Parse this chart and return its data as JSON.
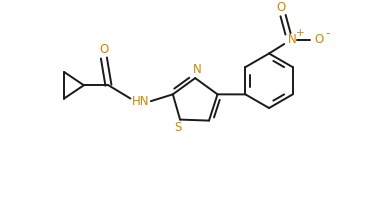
{
  "bg_color": "#ffffff",
  "bond_color": "#1a1a1a",
  "atom_colors": {
    "N": "#cc8800",
    "O": "#cc8800",
    "S": "#cc8800"
  },
  "line_width": 1.4,
  "figsize": [
    3.79,
    1.97
  ],
  "dpi": 100
}
